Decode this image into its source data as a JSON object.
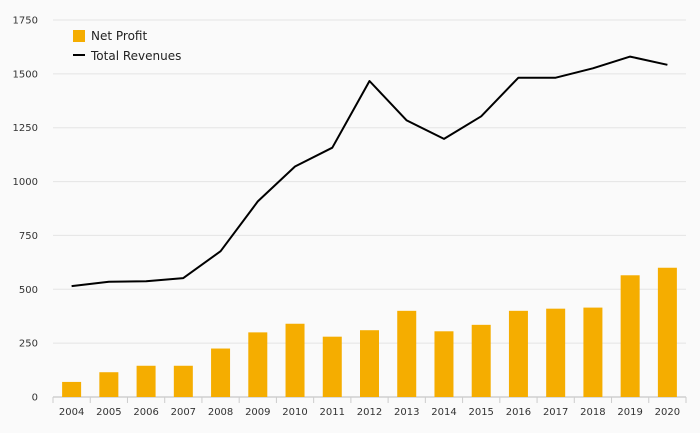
{
  "chart_data": {
    "type": "bar",
    "categories": [
      "2004",
      "2005",
      "2006",
      "2007",
      "2008",
      "2009",
      "2010",
      "2011",
      "2012",
      "2013",
      "2014",
      "2015",
      "2016",
      "2017",
      "2018",
      "2019",
      "2020"
    ],
    "series": [
      {
        "name": "Net Profit",
        "kind": "bar",
        "color": "#f5ad00",
        "values": [
          70,
          115,
          145,
          145,
          225,
          300,
          340,
          280,
          310,
          400,
          305,
          335,
          400,
          410,
          415,
          565,
          600
        ]
      },
      {
        "name": "Total Revenues",
        "kind": "line",
        "color": "#000000",
        "values": [
          515,
          535,
          537,
          552,
          677,
          908,
          1070,
          1157,
          1467,
          1284,
          1198,
          1303,
          1482,
          1482,
          1526,
          1580,
          1542
        ]
      }
    ],
    "title": "",
    "xlabel": "",
    "ylabel": "",
    "ylim": [
      0,
      1750
    ],
    "yticks": [
      0,
      250,
      500,
      750,
      1000,
      1250,
      1500,
      1750
    ],
    "grid": true,
    "legend_position": "top-left"
  }
}
